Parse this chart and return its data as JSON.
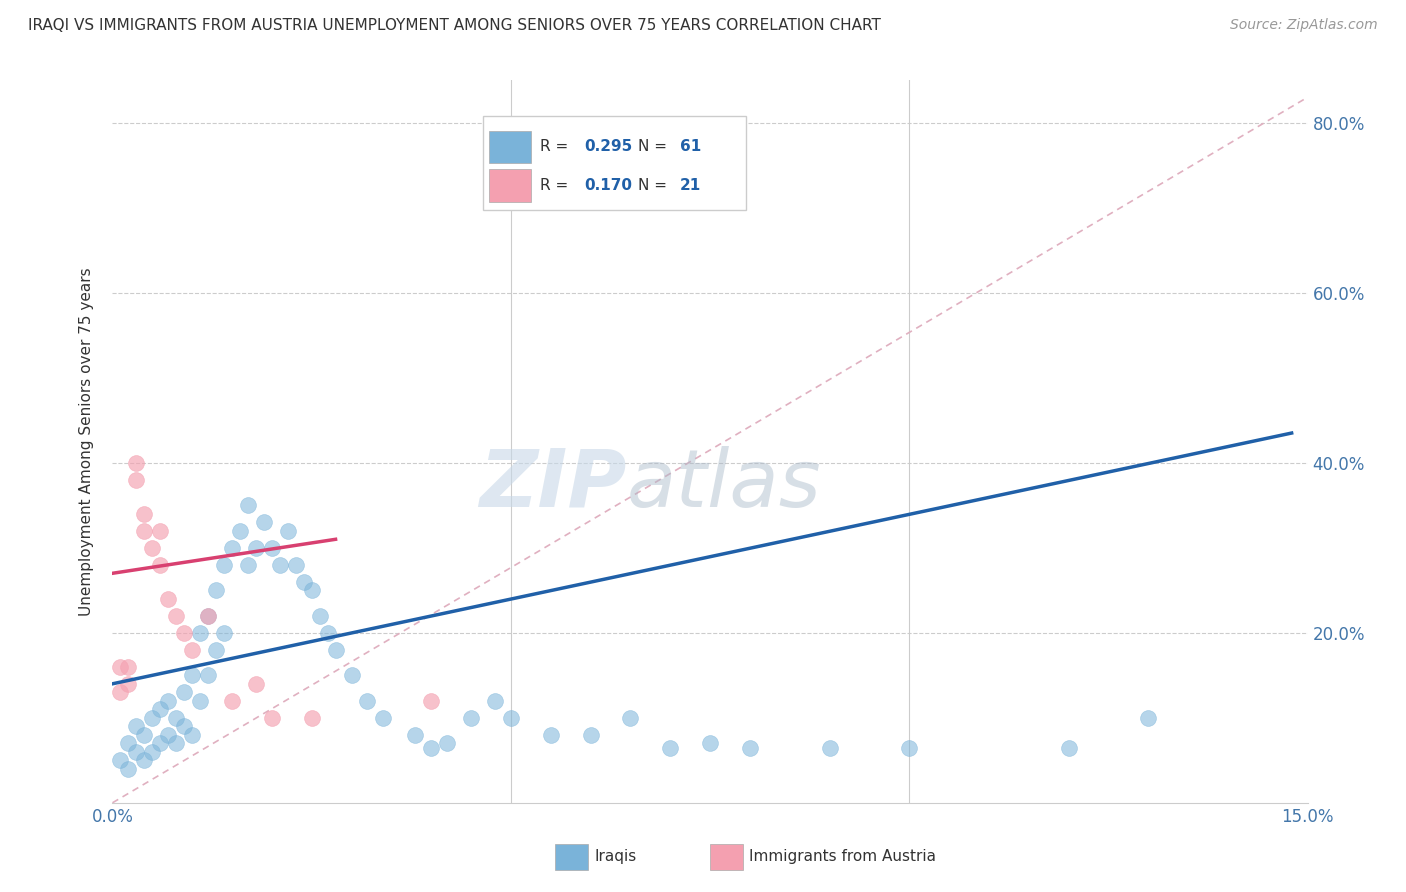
{
  "title": "IRAQI VS IMMIGRANTS FROM AUSTRIA UNEMPLOYMENT AMONG SENIORS OVER 75 YEARS CORRELATION CHART",
  "source": "Source: ZipAtlas.com",
  "ylabel": "Unemployment Among Seniors over 75 years",
  "xlim": [
    0.0,
    0.15
  ],
  "ylim": [
    0.0,
    0.85
  ],
  "iraqi_color": "#7ab3d9",
  "austria_color": "#f4a0b0",
  "iraqi_line_color": "#2060a8",
  "austria_line_color": "#d84070",
  "iraqi_R": 0.295,
  "iraqi_N": 61,
  "austria_R": 0.17,
  "austria_N": 21,
  "legend_label_1": "Iraqis",
  "legend_label_2": "Immigrants from Austria",
  "watermark_zip": "ZIP",
  "watermark_atlas": "atlas",
  "background_color": "#ffffff",
  "grid_color": "#cccccc",
  "diag_color": "#e0b0c0",
  "iraqi_x": [
    0.001,
    0.002,
    0.002,
    0.003,
    0.003,
    0.004,
    0.004,
    0.005,
    0.005,
    0.006,
    0.006,
    0.007,
    0.007,
    0.008,
    0.008,
    0.009,
    0.009,
    0.01,
    0.01,
    0.011,
    0.011,
    0.012,
    0.012,
    0.013,
    0.013,
    0.014,
    0.014,
    0.015,
    0.016,
    0.017,
    0.017,
    0.018,
    0.019,
    0.02,
    0.021,
    0.022,
    0.023,
    0.024,
    0.025,
    0.026,
    0.027,
    0.028,
    0.03,
    0.032,
    0.034,
    0.038,
    0.04,
    0.042,
    0.045,
    0.048,
    0.05,
    0.055,
    0.06,
    0.065,
    0.07,
    0.075,
    0.08,
    0.09,
    0.1,
    0.12,
    0.13
  ],
  "iraqi_y": [
    0.05,
    0.04,
    0.07,
    0.06,
    0.09,
    0.05,
    0.08,
    0.06,
    0.1,
    0.07,
    0.11,
    0.08,
    0.12,
    0.07,
    0.1,
    0.09,
    0.13,
    0.08,
    0.15,
    0.12,
    0.2,
    0.15,
    0.22,
    0.18,
    0.25,
    0.2,
    0.28,
    0.3,
    0.32,
    0.28,
    0.35,
    0.3,
    0.33,
    0.3,
    0.28,
    0.32,
    0.28,
    0.26,
    0.25,
    0.22,
    0.2,
    0.18,
    0.15,
    0.12,
    0.1,
    0.08,
    0.065,
    0.07,
    0.1,
    0.12,
    0.1,
    0.08,
    0.08,
    0.1,
    0.065,
    0.07,
    0.065,
    0.065,
    0.065,
    0.065,
    0.1
  ],
  "austria_x": [
    0.001,
    0.001,
    0.002,
    0.002,
    0.003,
    0.003,
    0.004,
    0.004,
    0.005,
    0.006,
    0.006,
    0.007,
    0.008,
    0.009,
    0.01,
    0.012,
    0.015,
    0.018,
    0.02,
    0.025,
    0.04
  ],
  "austria_y": [
    0.13,
    0.16,
    0.14,
    0.16,
    0.38,
    0.4,
    0.32,
    0.34,
    0.3,
    0.28,
    0.32,
    0.24,
    0.22,
    0.2,
    0.18,
    0.22,
    0.12,
    0.14,
    0.1,
    0.1,
    0.12
  ],
  "iraqi_line_x0": 0.0,
  "iraqi_line_y0": 0.14,
  "iraqi_line_x1": 0.148,
  "iraqi_line_y1": 0.435,
  "austria_line_x0": 0.0,
  "austria_line_y0": 0.27,
  "austria_line_x1": 0.028,
  "austria_line_y1": 0.31
}
